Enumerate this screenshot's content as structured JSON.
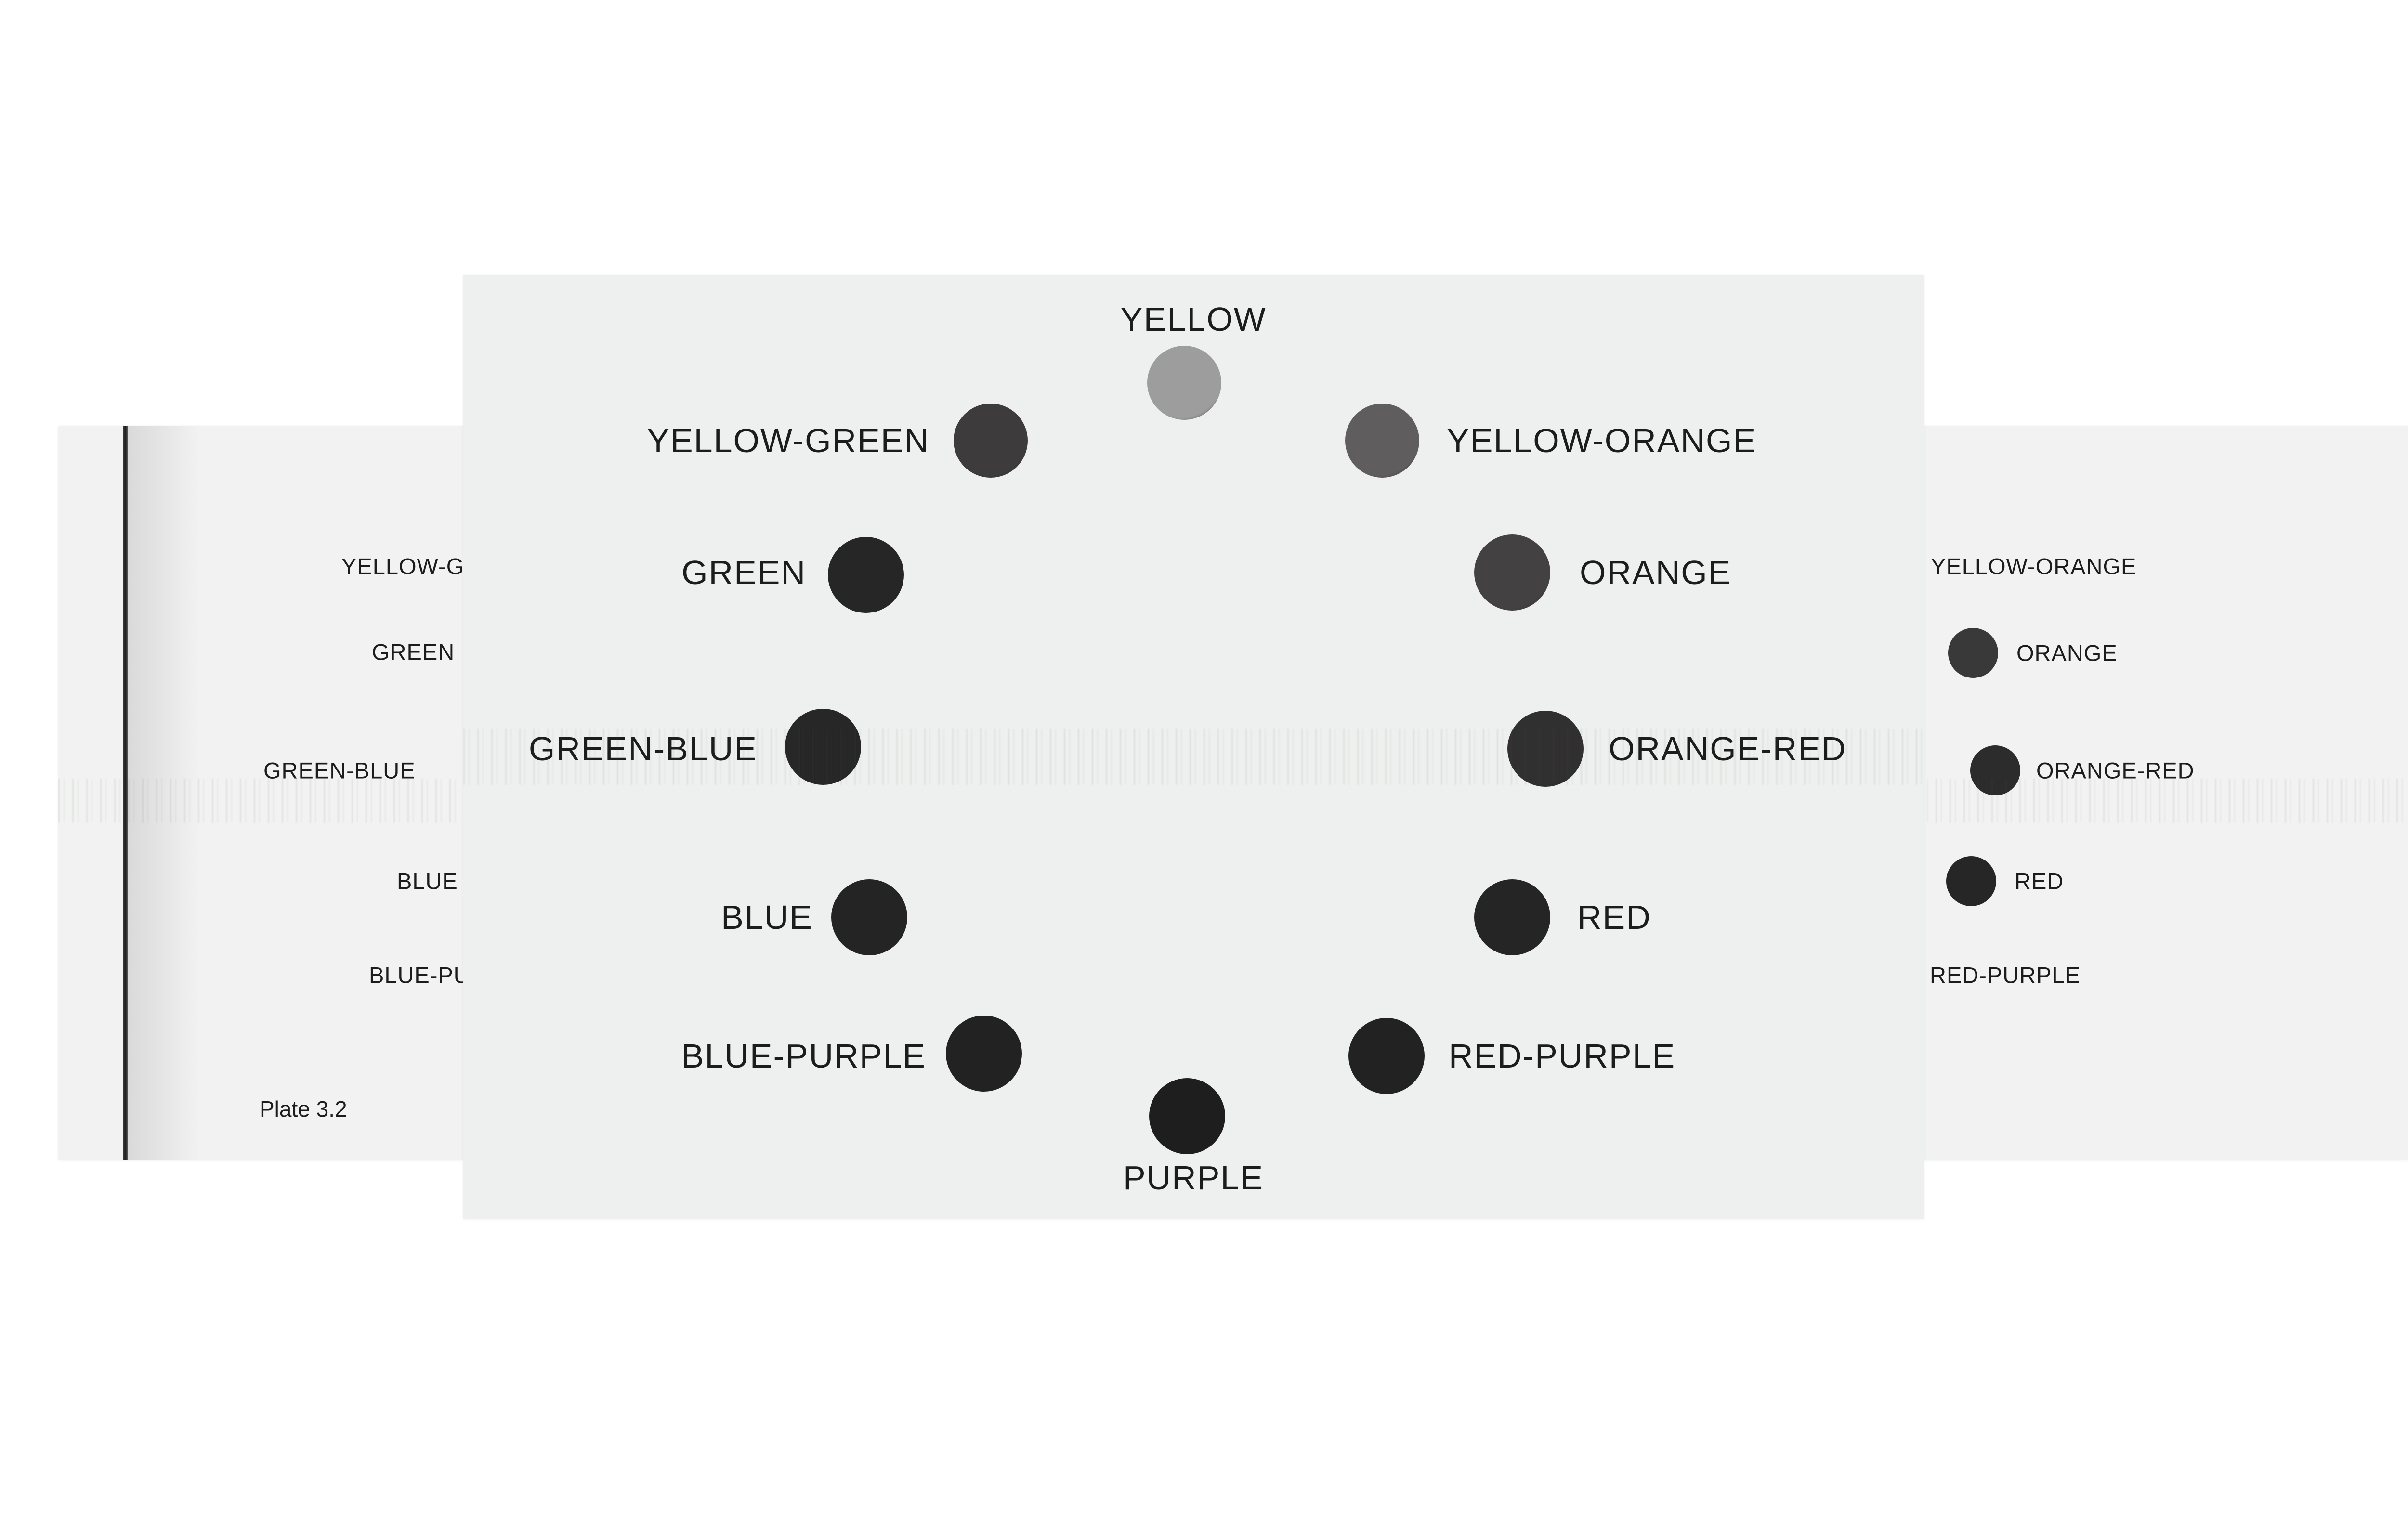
{
  "left_card": {
    "labels": [
      "YELLOW-G",
      "GREEN",
      "GREEN-BLUE",
      "BLUE",
      "BLUE-PU"
    ],
    "plate": "Plate 3.2",
    "dot_color": "#262626"
  },
  "main_card": {
    "top_label": "YELLOW",
    "bottom_label": "PURPLE",
    "left_labels": [
      "YELLOW-GREEN",
      "GREEN",
      "GREEN-BLUE",
      "BLUE",
      "BLUE-PURPLE"
    ],
    "right_labels": [
      "YELLOW-ORANGE",
      "ORANGE",
      "ORANGE-RED",
      "RED",
      "RED-PURPLE"
    ],
    "dot_colors": {
      "yellow": "#9d9d9d",
      "yellow_orange": "#5f5d5d",
      "orange": "#434141",
      "orange_red": "#313030",
      "red": "#252525",
      "red_purple": "#222222",
      "purple": "#1e1e1e",
      "blue_purple": "#222222",
      "blue": "#242424",
      "green_blue": "#272727",
      "green": "#262626",
      "yellow_green": "#3d3b3b"
    }
  },
  "right_card": {
    "labels": [
      "YELLOW-ORANGE",
      "ORANGE",
      "ORANGE-RED",
      "RED",
      "RED-PURPLE"
    ],
    "dot_colors": [
      "#3a3939",
      "#2d2c2c",
      "#262626"
    ]
  }
}
